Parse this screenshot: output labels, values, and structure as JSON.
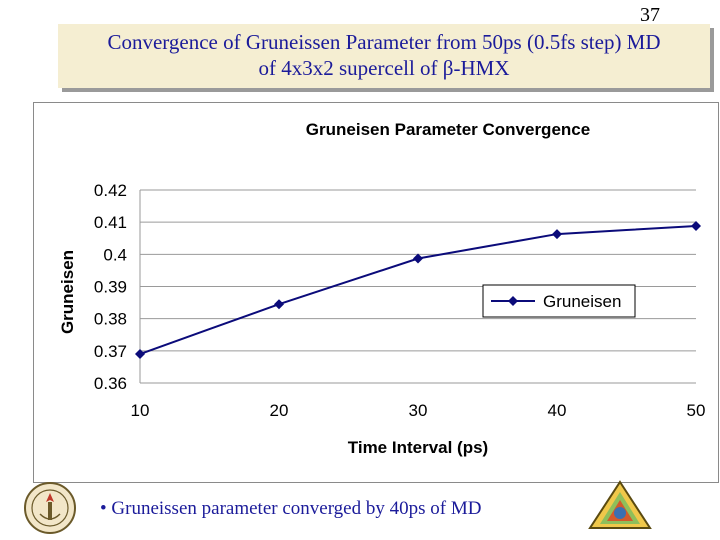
{
  "slide": {
    "number": "37"
  },
  "title": {
    "line1": "Convergence of Gruneissen Parameter from 50ps (0.5fs step) MD",
    "line2": "of 4x3x2 supercell of β-HMX"
  },
  "bullet": {
    "text": "• Gruneissen parameter converged by 40ps of MD"
  },
  "colors": {
    "series": "#0b0b7a",
    "title_text": "#1b1b9a",
    "title_bg": "#f5eed2"
  },
  "logos": {
    "left": "university-seal-logo",
    "right": "triangle-center-logo"
  },
  "chart_data": {
    "type": "line",
    "title": "Gruneisen Parameter Convergence",
    "xlabel": "Time Interval (ps)",
    "ylabel": "Gruneisen",
    "xlim": [
      10,
      50
    ],
    "ylim": [
      0.36,
      0.42
    ],
    "xticks": [
      "10",
      "20",
      "30",
      "40",
      "50"
    ],
    "yticks": [
      "0.36",
      "0.37",
      "0.38",
      "0.39",
      "0.4",
      "0.41",
      "0.42"
    ],
    "grid": "horizontal",
    "legend": "right",
    "series": [
      {
        "name": "Gruneisen",
        "x": [
          10,
          20,
          30,
          40,
          50
        ],
        "values": [
          0.369,
          0.3845,
          0.3987,
          0.4063,
          0.4088
        ]
      }
    ]
  }
}
